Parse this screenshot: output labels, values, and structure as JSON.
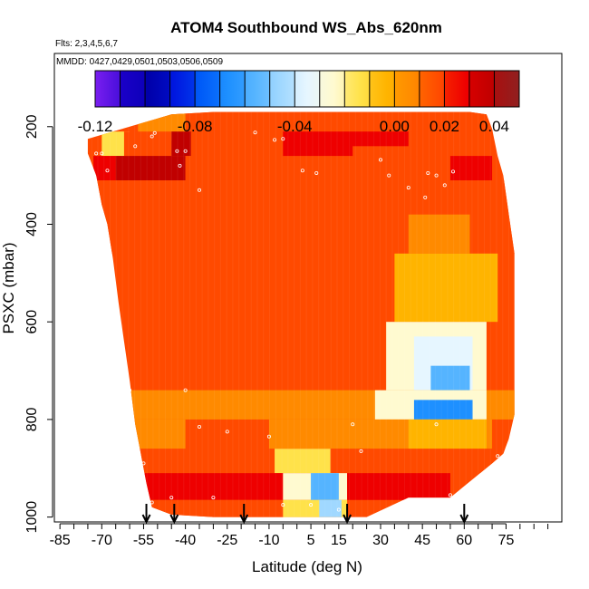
{
  "chart_data": {
    "type": "heatmap",
    "title": "ATOM4 Southbound WS_Abs_620nm",
    "subtitle_flights": "Flts: 2,3,4,5,6,7",
    "subtitle_dates": "MMDD: 0427,0429,0501,0503,0506,0509",
    "xlabel": "Latitude (deg N)",
    "ylabel": "PSXC (mbar)",
    "xlim": [
      -87,
      95
    ],
    "ylim": [
      1010,
      50
    ],
    "xticks": [
      -85,
      -70,
      -55,
      -40,
      -25,
      -10,
      5,
      15,
      30,
      45,
      60,
      75
    ],
    "xtick_labels": [
      "-85",
      "-70",
      "-55",
      "-40",
      "-25",
      "-10",
      "5",
      "15",
      "30",
      "45",
      "60",
      "75"
    ],
    "yticks": [
      200,
      400,
      600,
      800,
      1000
    ],
    "ytick_labels": [
      "200",
      "400",
      "600",
      "800",
      "1000"
    ],
    "colorbar": {
      "range": [
        -0.12,
        0.05
      ],
      "tick_values": [
        -0.12,
        -0.08,
        -0.04,
        0.0,
        0.02,
        0.04
      ],
      "tick_labels": [
        "-0.12",
        "-0.08",
        "-0.04",
        "0.00",
        "0.02",
        "0.04"
      ],
      "boundaries": [
        -0.12,
        -0.11,
        -0.1,
        -0.09,
        -0.08,
        -0.07,
        -0.06,
        -0.05,
        -0.04,
        -0.03,
        -0.02,
        -0.01,
        0.0,
        0.01,
        0.02,
        0.03,
        0.04,
        0.05
      ],
      "colors": [
        "#7a1ef0",
        "#1a00c8",
        "#0000aa",
        "#0018e0",
        "#005cf8",
        "#1e90ff",
        "#55b4ff",
        "#a0d8ff",
        "#e6f6ff",
        "#fffad0",
        "#ffe24a",
        "#ffb400",
        "#ff8a00",
        "#ff4a00",
        "#ee0000",
        "#c00000",
        "#902020"
      ]
    },
    "upper_pressure_bound": [
      [
        -75,
        225
      ],
      [
        -60,
        200
      ],
      [
        -45,
        175
      ],
      [
        -30,
        170
      ],
      [
        -10,
        170
      ],
      [
        10,
        170
      ],
      [
        30,
        170
      ],
      [
        50,
        170
      ],
      [
        62,
        170
      ],
      [
        68,
        175
      ],
      [
        70,
        205
      ],
      [
        72,
        260
      ],
      [
        74,
        300
      ],
      [
        75,
        340
      ],
      [
        76,
        380
      ],
      [
        77,
        420
      ],
      [
        78,
        460
      ]
    ],
    "lower_pressure_bound": [
      [
        -75,
        255
      ],
      [
        -72,
        300
      ],
      [
        -70,
        360
      ],
      [
        -68,
        400
      ],
      [
        -66,
        470
      ],
      [
        -64,
        560
      ],
      [
        -62,
        640
      ],
      [
        -60,
        720
      ],
      [
        -58,
        810
      ],
      [
        -56,
        870
      ],
      [
        -54,
        930
      ],
      [
        -52,
        980
      ],
      [
        -45,
        995
      ],
      [
        -30,
        1000
      ],
      [
        -10,
        1000
      ],
      [
        5,
        1000
      ],
      [
        15,
        1000
      ],
      [
        25,
        1000
      ],
      [
        40,
        960
      ],
      [
        55,
        960
      ],
      [
        70,
        890
      ],
      [
        74,
        870
      ],
      [
        76,
        840
      ],
      [
        78,
        790
      ]
    ],
    "field_values": [
      {
        "lat_range": [
          -90,
          90
        ],
        "p_range": [
          50,
          1050
        ],
        "value": 0.01
      },
      {
        "lat_range": [
          -50,
          90
        ],
        "p_range": [
          160,
          210
        ],
        "value": 0.012
      },
      {
        "lat_range": [
          -57,
          -40
        ],
        "p_range": [
          160,
          230
        ],
        "value": 0.008
      },
      {
        "lat_range": [
          -70,
          -60
        ],
        "p_range": [
          210,
          260
        ],
        "value": -0.012
      },
      {
        "lat_range": [
          -62,
          -45
        ],
        "p_range": [
          210,
          260
        ],
        "value": 0.016
      },
      {
        "lat_range": [
          -45,
          -38
        ],
        "p_range": [
          210,
          260
        ],
        "value": 0.035
      },
      {
        "lat_range": [
          -38,
          -25
        ],
        "p_range": [
          210,
          260
        ],
        "value": 0.012
      },
      {
        "lat_range": [
          -5,
          40
        ],
        "p_range": [
          210,
          260
        ],
        "value": 0.02
      },
      {
        "lat_range": [
          20,
          65
        ],
        "p_range": [
          240,
          300
        ],
        "value": 0.014
      },
      {
        "lat_range": [
          -73,
          -65
        ],
        "p_range": [
          260,
          310
        ],
        "value": 0.02
      },
      {
        "lat_range": [
          -65,
          -40
        ],
        "p_range": [
          260,
          310
        ],
        "value": 0.038
      },
      {
        "lat_range": [
          -40,
          -30
        ],
        "p_range": [
          260,
          310
        ],
        "value": 0.018
      },
      {
        "lat_range": [
          35,
          55
        ],
        "p_range": [
          260,
          310
        ],
        "value": 0.018
      },
      {
        "lat_range": [
          55,
          70
        ],
        "p_range": [
          260,
          310
        ],
        "value": 0.028
      },
      {
        "lat_range": [
          -75,
          90
        ],
        "p_range": [
          310,
          460
        ],
        "value": 0.011
      },
      {
        "lat_range": [
          40,
          62
        ],
        "p_range": [
          380,
          460
        ],
        "value": 0.0
      },
      {
        "lat_range": [
          35,
          72
        ],
        "p_range": [
          460,
          600
        ],
        "value": -0.005
      },
      {
        "lat_range": [
          32,
          68
        ],
        "p_range": [
          600,
          740
        ],
        "value": -0.022
      },
      {
        "lat_range": [
          42,
          63
        ],
        "p_range": [
          630,
          760
        ],
        "value": -0.04
      },
      {
        "lat_range": [
          48,
          62
        ],
        "p_range": [
          690,
          760
        ],
        "value": -0.055
      },
      {
        "lat_range": [
          -75,
          90
        ],
        "p_range": [
          740,
          800
        ],
        "value": 0.008
      },
      {
        "lat_range": [
          28,
          68
        ],
        "p_range": [
          740,
          800
        ],
        "value": -0.03
      },
      {
        "lat_range": [
          42,
          63
        ],
        "p_range": [
          760,
          800
        ],
        "value": -0.065
      },
      {
        "lat_range": [
          -65,
          -40
        ],
        "p_range": [
          800,
          860
        ],
        "value": 0.0
      },
      {
        "lat_range": [
          -10,
          70
        ],
        "p_range": [
          800,
          860
        ],
        "value": 0.0
      },
      {
        "lat_range": [
          40,
          68
        ],
        "p_range": [
          800,
          860
        ],
        "value": -0.005
      },
      {
        "lat_range": [
          -75,
          90
        ],
        "p_range": [
          860,
          910
        ],
        "value": 0.014
      },
      {
        "lat_range": [
          -8,
          12
        ],
        "p_range": [
          860,
          910
        ],
        "value": -0.012
      },
      {
        "lat_range": [
          -65,
          -5
        ],
        "p_range": [
          910,
          965
        ],
        "value": 0.02
      },
      {
        "lat_range": [
          -5,
          18
        ],
        "p_range": [
          910,
          965
        ],
        "value": -0.03
      },
      {
        "lat_range": [
          5,
          15
        ],
        "p_range": [
          910,
          965
        ],
        "value": -0.06
      },
      {
        "lat_range": [
          18,
          55
        ],
        "p_range": [
          910,
          965
        ],
        "value": 0.025
      },
      {
        "lat_range": [
          -63,
          -60
        ],
        "p_range": [
          910,
          965
        ],
        "value": -0.05
      },
      {
        "lat_range": [
          -60,
          -5
        ],
        "p_range": [
          965,
          1020
        ],
        "value": 0.013
      },
      {
        "lat_range": [
          -5,
          18
        ],
        "p_range": [
          965,
          1020
        ],
        "value": -0.02
      },
      {
        "lat_range": [
          8,
          16
        ],
        "p_range": [
          965,
          1020
        ],
        "value": -0.05
      }
    ],
    "flight_track_points": [
      [
        -58,
        240
      ],
      [
        -52,
        220
      ],
      [
        -51,
        213
      ],
      [
        -43,
        250
      ],
      [
        -40,
        250
      ],
      [
        -42,
        280
      ],
      [
        -35,
        330
      ],
      [
        -15,
        212
      ],
      [
        -8,
        227
      ],
      [
        -5,
        225
      ],
      [
        2,
        290
      ],
      [
        7,
        295
      ],
      [
        30,
        268
      ],
      [
        33,
        300
      ],
      [
        40,
        325
      ],
      [
        46,
        345
      ],
      [
        47,
        295
      ],
      [
        50,
        300
      ],
      [
        53,
        320
      ],
      [
        56,
        292
      ],
      [
        -68,
        290
      ],
      [
        -70,
        255
      ],
      [
        -72,
        255
      ],
      [
        -60,
        740
      ],
      [
        -58,
        865
      ],
      [
        -55,
        890
      ],
      [
        -40,
        740
      ],
      [
        -35,
        815
      ],
      [
        -25,
        825
      ],
      [
        -10,
        835
      ],
      [
        20,
        810
      ],
      [
        23,
        865
      ],
      [
        50,
        810
      ],
      [
        72,
        875
      ],
      [
        -70,
        960
      ],
      [
        -45,
        960
      ],
      [
        -30,
        960
      ],
      [
        -5,
        975
      ],
      [
        5,
        975
      ],
      [
        15,
        985
      ],
      [
        55,
        955
      ],
      [
        -52,
        970
      ]
    ],
    "arrow_markers_lat": [
      -54,
      -44,
      -19,
      18,
      60
    ]
  }
}
